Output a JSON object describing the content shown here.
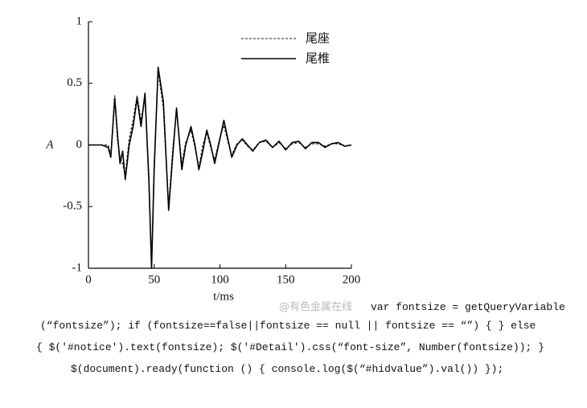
{
  "chart_data": {
    "type": "line",
    "x_label": "t/ms",
    "y_label": "A",
    "x": [
      0,
      10,
      15,
      17,
      20,
      22,
      24,
      26,
      28,
      31,
      34,
      37,
      40,
      43,
      46,
      48,
      50,
      53,
      57,
      61,
      64,
      67,
      71,
      74,
      78,
      81,
      84,
      87,
      90,
      93,
      96,
      100,
      103,
      106,
      109,
      113,
      117,
      121,
      125,
      130,
      135,
      140,
      145,
      150,
      155,
      160,
      165,
      170,
      175,
      180,
      185,
      190,
      195,
      200
    ],
    "series": [
      {
        "name": "尾座",
        "color": "#222222",
        "dash": true,
        "values": [
          0,
          0,
          0,
          -0.08,
          0.4,
          0.05,
          -0.1,
          -0.15,
          -0.25,
          0.05,
          0.2,
          0.4,
          0.2,
          0.38,
          -0.25,
          -0.98,
          -0.15,
          0.6,
          0.3,
          -0.5,
          -0.05,
          0.28,
          -0.15,
          0.02,
          0.12,
          -0.02,
          -0.18,
          0,
          0.1,
          -0.02,
          -0.12,
          0.06,
          0.16,
          0.03,
          -0.08,
          0.01,
          0.04,
          -0.01,
          -0.04,
          0.02,
          0.03,
          -0.02,
          0.02,
          -0.03,
          0.01,
          0.02,
          -0.02,
          0.01,
          0.01,
          -0.01,
          0.01,
          0.01,
          -0.01,
          0
        ]
      },
      {
        "name": "尾椎",
        "color": "#000000",
        "dash": false,
        "values": [
          0,
          0,
          -0.02,
          -0.1,
          0.38,
          0.1,
          -0.15,
          -0.05,
          -0.28,
          0,
          0.15,
          0.38,
          0.15,
          0.42,
          -0.3,
          -1,
          -0.2,
          0.63,
          0.35,
          -0.53,
          -0.1,
          0.3,
          -0.2,
          0,
          0.15,
          0,
          -0.2,
          -0.05,
          0.12,
          0,
          -0.15,
          0.05,
          0.2,
          0.05,
          -0.1,
          0,
          0.05,
          0,
          -0.05,
          0.02,
          0.04,
          -0.02,
          0.03,
          -0.04,
          0.02,
          0.03,
          -0.03,
          0.02,
          0.02,
          -0.02,
          0.01,
          0.02,
          -0.01,
          0
        ]
      }
    ],
    "xlim": [
      0,
      200
    ],
    "xticks": [
      0,
      50,
      100,
      150,
      200
    ],
    "ylim": [
      -1,
      1
    ],
    "yticks": [
      -1,
      -0.5,
      0,
      0.5,
      1
    ],
    "grid": false,
    "legend": "upper right"
  },
  "watermark": "@有色金属在线",
  "code_lines": [
    "var fontsize = getQueryVariable",
    "(“fontsize”); if (fontsize==false||fontsize == null || fontsize == “”) { } else",
    "{ $('#notice').text(fontsize); $('#Detail').css(“font-size”, Number(fontsize)); }",
    "$(document).ready(function () { console.log($(“#hidvalue”).val()) });"
  ]
}
